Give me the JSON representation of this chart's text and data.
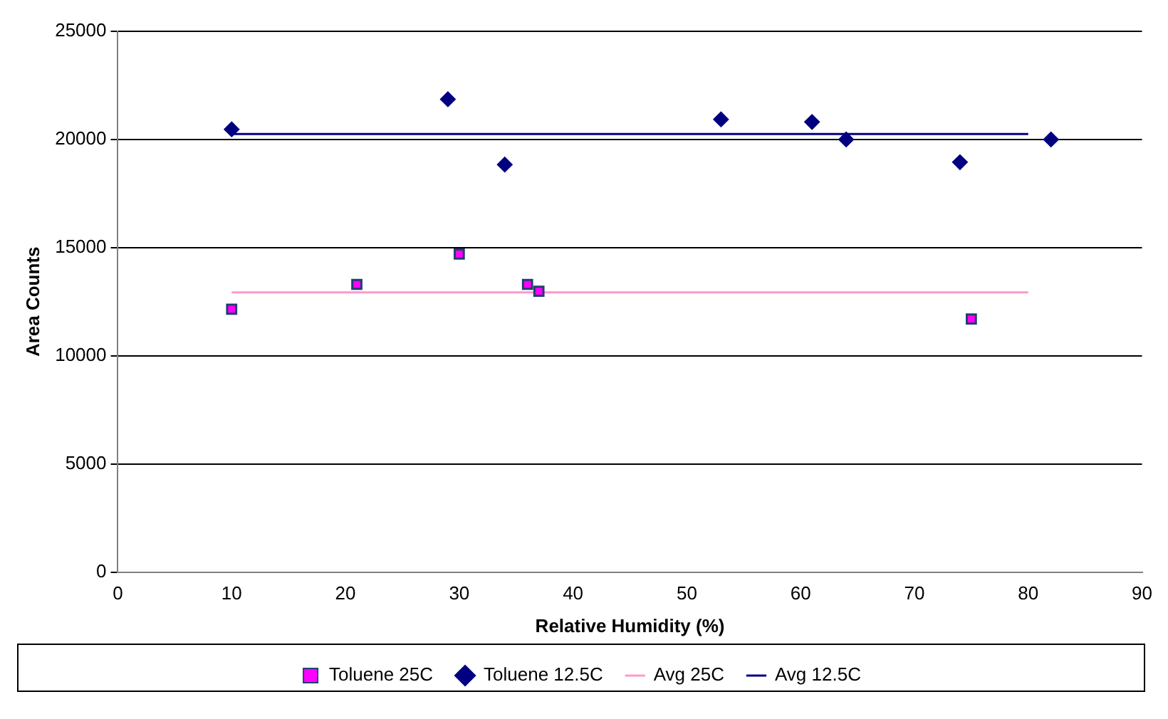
{
  "chart_data": {
    "type": "scatter",
    "xlabel": "Relative Humidity (%)",
    "ylabel": "Area Counts",
    "xlim": [
      0,
      90
    ],
    "xticks": [
      0,
      10,
      20,
      30,
      40,
      50,
      60,
      70,
      80,
      90
    ],
    "ylim": [
      0,
      25000
    ],
    "yticks": [
      0,
      5000,
      10000,
      15000,
      20000,
      25000
    ],
    "grid": "y",
    "legend": "bottom",
    "series": [
      {
        "name": "Toluene 25C",
        "marker": "square",
        "color": "#ff00ff",
        "x": [
          10,
          21,
          30,
          36,
          37,
          75
        ],
        "values": [
          12150,
          13300,
          14700,
          13300,
          12980,
          11700
        ]
      },
      {
        "name": "Toluene 12.5C",
        "marker": "diamond",
        "color": "#000080",
        "x": [
          10,
          29,
          34,
          53,
          61,
          64,
          74,
          82
        ],
        "values": [
          20470,
          21860,
          18840,
          20930,
          20810,
          20000,
          18950,
          20000
        ]
      },
      {
        "name": "Avg 25C",
        "type": "line",
        "marker": "none",
        "color": "#ff99cc",
        "x": [
          10,
          80
        ],
        "values": [
          12930,
          12930
        ]
      },
      {
        "name": "Avg 12.5C",
        "type": "line",
        "marker": "none",
        "color": "#000080",
        "x": [
          10,
          80
        ],
        "values": [
          20250,
          20250
        ]
      }
    ]
  }
}
